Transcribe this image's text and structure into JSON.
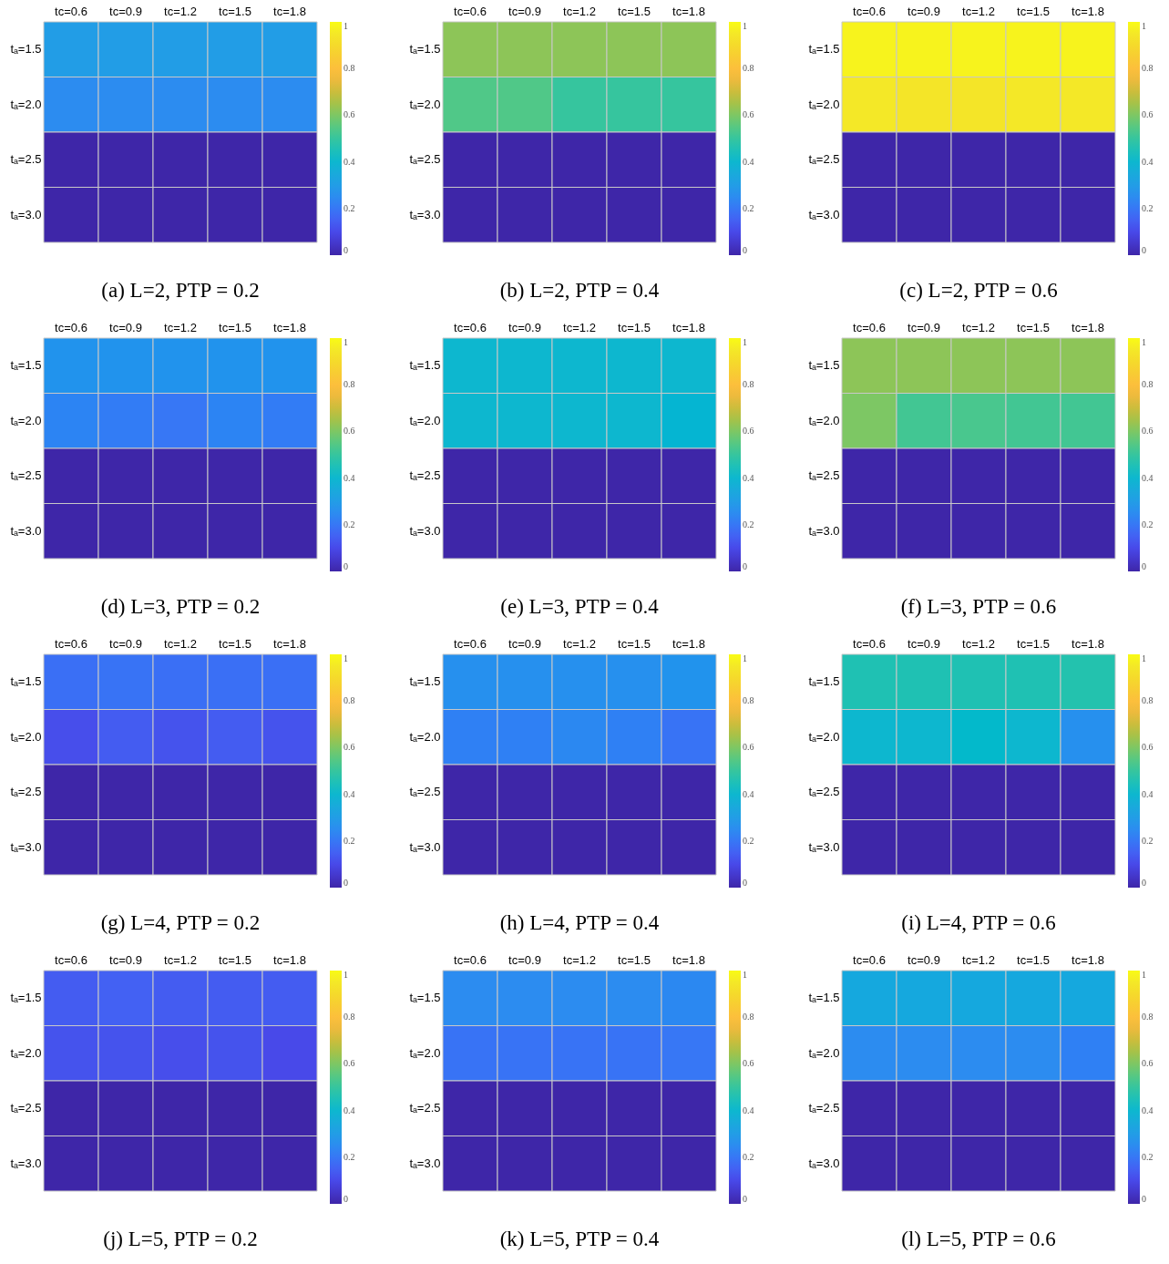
{
  "chart_data": [
    {
      "type": "heatmap",
      "title": "(a) L=2, PTP = 0.2",
      "categories": [
        "tc=0.6",
        "tc=0.9",
        "tc=1.2",
        "tc=1.5",
        "tc=1.8"
      ],
      "y_categories": [
        "tₐ=1.5",
        "tₐ=2.0",
        "tₐ=2.5",
        "tₐ=3.0"
      ],
      "cells": [
        [
          0.3,
          0.3,
          0.3,
          0.3,
          0.3
        ],
        [
          0.25,
          0.25,
          0.25,
          0.25,
          0.25
        ],
        [
          0,
          0,
          0,
          0,
          0
        ],
        [
          0,
          0,
          0,
          0,
          0
        ]
      ],
      "clim": [
        0,
        1
      ],
      "cticks": [
        0,
        0.2,
        0.4,
        0.6,
        0.8,
        1
      ]
    },
    {
      "type": "heatmap",
      "title": "(b) L=2, PTP = 0.4",
      "categories": [
        "tc=0.6",
        "tc=0.9",
        "tc=1.2",
        "tc=1.5",
        "tc=1.8"
      ],
      "y_categories": [
        "tₐ=1.5",
        "tₐ=2.0",
        "tₐ=2.5",
        "tₐ=3.0"
      ],
      "cells": [
        [
          0.62,
          0.62,
          0.62,
          0.62,
          0.62
        ],
        [
          0.54,
          0.54,
          0.5,
          0.5,
          0.5
        ],
        [
          0,
          0,
          0,
          0,
          0
        ],
        [
          0,
          0,
          0,
          0,
          0
        ]
      ],
      "clim": [
        0,
        1
      ],
      "cticks": [
        0,
        0.2,
        0.4,
        0.6,
        0.8,
        1
      ]
    },
    {
      "type": "heatmap",
      "title": "(c) L=2, PTP = 0.6",
      "categories": [
        "tc=0.6",
        "tc=0.9",
        "tc=1.2",
        "tc=1.5",
        "tc=1.8"
      ],
      "y_categories": [
        "tₐ=1.5",
        "tₐ=2.0",
        "tₐ=2.5",
        "tₐ=3.0"
      ],
      "cells": [
        [
          0.98,
          0.98,
          0.98,
          0.98,
          0.98
        ],
        [
          0.95,
          0.94,
          0.94,
          0.95,
          0.95
        ],
        [
          0,
          0,
          0,
          0,
          0
        ],
        [
          0,
          0,
          0,
          0,
          0
        ]
      ],
      "clim": [
        0,
        1
      ],
      "cticks": [
        0,
        0.2,
        0.4,
        0.6,
        0.8,
        1
      ]
    },
    {
      "type": "heatmap",
      "title": "(d) L=3, PTP = 0.2",
      "categories": [
        "tc=0.6",
        "tc=0.9",
        "tc=1.2",
        "tc=1.5",
        "tc=1.8"
      ],
      "y_categories": [
        "tₐ=1.5",
        "tₐ=2.0",
        "tₐ=2.5",
        "tₐ=3.0"
      ],
      "cells": [
        [
          0.27,
          0.27,
          0.27,
          0.27,
          0.27
        ],
        [
          0.23,
          0.21,
          0.2,
          0.23,
          0.21
        ],
        [
          0,
          0,
          0,
          0,
          0
        ],
        [
          0,
          0,
          0,
          0,
          0
        ]
      ],
      "clim": [
        0,
        1
      ],
      "cticks": [
        0,
        0.2,
        0.4,
        0.6,
        0.8,
        1
      ]
    },
    {
      "type": "heatmap",
      "title": "(e) L=3, PTP = 0.4",
      "categories": [
        "tc=0.6",
        "tc=0.9",
        "tc=1.2",
        "tc=1.5",
        "tc=1.8"
      ],
      "y_categories": [
        "tₐ=1.5",
        "tₐ=2.0",
        "tₐ=2.5",
        "tₐ=3.0"
      ],
      "cells": [
        [
          0.4,
          0.4,
          0.4,
          0.4,
          0.4
        ],
        [
          0.4,
          0.4,
          0.4,
          0.4,
          0.39
        ],
        [
          0,
          0,
          0,
          0,
          0
        ],
        [
          0,
          0,
          0,
          0,
          0
        ]
      ],
      "clim": [
        0,
        1
      ],
      "cticks": [
        0,
        0.2,
        0.4,
        0.6,
        0.8,
        1
      ]
    },
    {
      "type": "heatmap",
      "title": "(f) L=3, PTP = 0.6",
      "categories": [
        "tc=0.6",
        "tc=0.9",
        "tc=1.2",
        "tc=1.5",
        "tc=1.8"
      ],
      "y_categories": [
        "tₐ=1.5",
        "tₐ=2.0",
        "tₐ=2.5",
        "tₐ=3.0"
      ],
      "cells": [
        [
          0.62,
          0.62,
          0.62,
          0.62,
          0.62
        ],
        [
          0.6,
          0.52,
          0.53,
          0.52,
          0.52
        ],
        [
          0,
          0,
          0,
          0,
          0
        ],
        [
          0,
          0,
          0,
          0,
          0
        ]
      ],
      "clim": [
        0,
        1
      ],
      "cticks": [
        0,
        0.2,
        0.4,
        0.6,
        0.8,
        1
      ]
    },
    {
      "type": "heatmap",
      "title": "(g) L=4, PTP = 0.2",
      "categories": [
        "tc=0.6",
        "tc=0.9",
        "tc=1.2",
        "tc=1.5",
        "tc=1.8"
      ],
      "y_categories": [
        "tₐ=1.5",
        "tₐ=2.0",
        "tₐ=2.5",
        "tₐ=3.0"
      ],
      "cells": [
        [
          0.18,
          0.19,
          0.18,
          0.18,
          0.18
        ],
        [
          0.11,
          0.14,
          0.12,
          0.14,
          0.12
        ],
        [
          0,
          0,
          0,
          0,
          0
        ],
        [
          0,
          0,
          0,
          0,
          0
        ]
      ],
      "clim": [
        0,
        1
      ],
      "cticks": [
        0,
        0.2,
        0.4,
        0.6,
        0.8,
        1
      ]
    },
    {
      "type": "heatmap",
      "title": "(h) L=4, PTP = 0.4",
      "categories": [
        "tc=0.6",
        "tc=0.9",
        "tc=1.2",
        "tc=1.5",
        "tc=1.8"
      ],
      "y_categories": [
        "tₐ=1.5",
        "tₐ=2.0",
        "tₐ=2.5",
        "tₐ=3.0"
      ],
      "cells": [
        [
          0.26,
          0.26,
          0.26,
          0.26,
          0.27
        ],
        [
          0.22,
          0.22,
          0.24,
          0.22,
          0.19
        ],
        [
          0,
          0,
          0,
          0,
          0
        ],
        [
          0,
          0,
          0,
          0,
          0
        ]
      ],
      "clim": [
        0,
        1
      ],
      "cticks": [
        0,
        0.2,
        0.4,
        0.6,
        0.8,
        1
      ]
    },
    {
      "type": "heatmap",
      "title": "(i) L=4, PTP = 0.6",
      "categories": [
        "tc=0.6",
        "tc=0.9",
        "tc=1.2",
        "tc=1.5",
        "tc=1.8"
      ],
      "y_categories": [
        "tₐ=1.5",
        "tₐ=2.0",
        "tₐ=2.5",
        "tₐ=3.0"
      ],
      "cells": [
        [
          0.46,
          0.46,
          0.46,
          0.46,
          0.47
        ],
        [
          0.4,
          0.4,
          0.41,
          0.4,
          0.26
        ],
        [
          0,
          0,
          0,
          0,
          0
        ],
        [
          0,
          0,
          0,
          0,
          0
        ]
      ],
      "clim": [
        0,
        1
      ],
      "cticks": [
        0,
        0.2,
        0.4,
        0.6,
        0.8,
        1
      ]
    },
    {
      "type": "heatmap",
      "title": "(j) L=5, PTP = 0.2",
      "categories": [
        "tc=0.6",
        "tc=0.9",
        "tc=1.2",
        "tc=1.5",
        "tc=1.8"
      ],
      "y_categories": [
        "tₐ=1.5",
        "tₐ=2.0",
        "tₐ=2.5",
        "tₐ=3.0"
      ],
      "cells": [
        [
          0.14,
          0.15,
          0.14,
          0.14,
          0.14
        ],
        [
          0.12,
          0.12,
          0.11,
          0.12,
          0.1
        ],
        [
          0,
          0,
          0,
          0,
          0
        ],
        [
          0,
          0,
          0,
          0,
          0
        ]
      ],
      "clim": [
        0,
        1
      ],
      "cticks": [
        0,
        0.2,
        0.4,
        0.6,
        0.8,
        1
      ]
    },
    {
      "type": "heatmap",
      "title": "(k) L=5, PTP = 0.4",
      "categories": [
        "tc=0.6",
        "tc=0.9",
        "tc=1.2",
        "tc=1.5",
        "tc=1.8"
      ],
      "y_categories": [
        "tₐ=1.5",
        "tₐ=2.0",
        "tₐ=2.5",
        "tₐ=3.0"
      ],
      "cells": [
        [
          0.25,
          0.25,
          0.25,
          0.25,
          0.24
        ],
        [
          0.19,
          0.19,
          0.19,
          0.19,
          0.2
        ],
        [
          0,
          0,
          0,
          0,
          0
        ],
        [
          0,
          0,
          0,
          0,
          0
        ]
      ],
      "clim": [
        0,
        1
      ],
      "cticks": [
        0,
        0.2,
        0.4,
        0.6,
        0.8,
        1
      ]
    },
    {
      "type": "heatmap",
      "title": "(l) L=5, PTP = 0.6",
      "categories": [
        "tc=0.6",
        "tc=0.9",
        "tc=1.2",
        "tc=1.5",
        "tc=1.8"
      ],
      "y_categories": [
        "tₐ=1.5",
        "tₐ=2.0",
        "tₐ=2.5",
        "tₐ=3.0"
      ],
      "cells": [
        [
          0.34,
          0.34,
          0.34,
          0.34,
          0.34
        ],
        [
          0.25,
          0.25,
          0.25,
          0.25,
          0.22
        ],
        [
          0,
          0,
          0,
          0,
          0
        ],
        [
          0,
          0,
          0,
          0,
          0
        ]
      ],
      "clim": [
        0,
        1
      ],
      "cticks": [
        0,
        0.2,
        0.4,
        0.6,
        0.8,
        1
      ]
    }
  ]
}
